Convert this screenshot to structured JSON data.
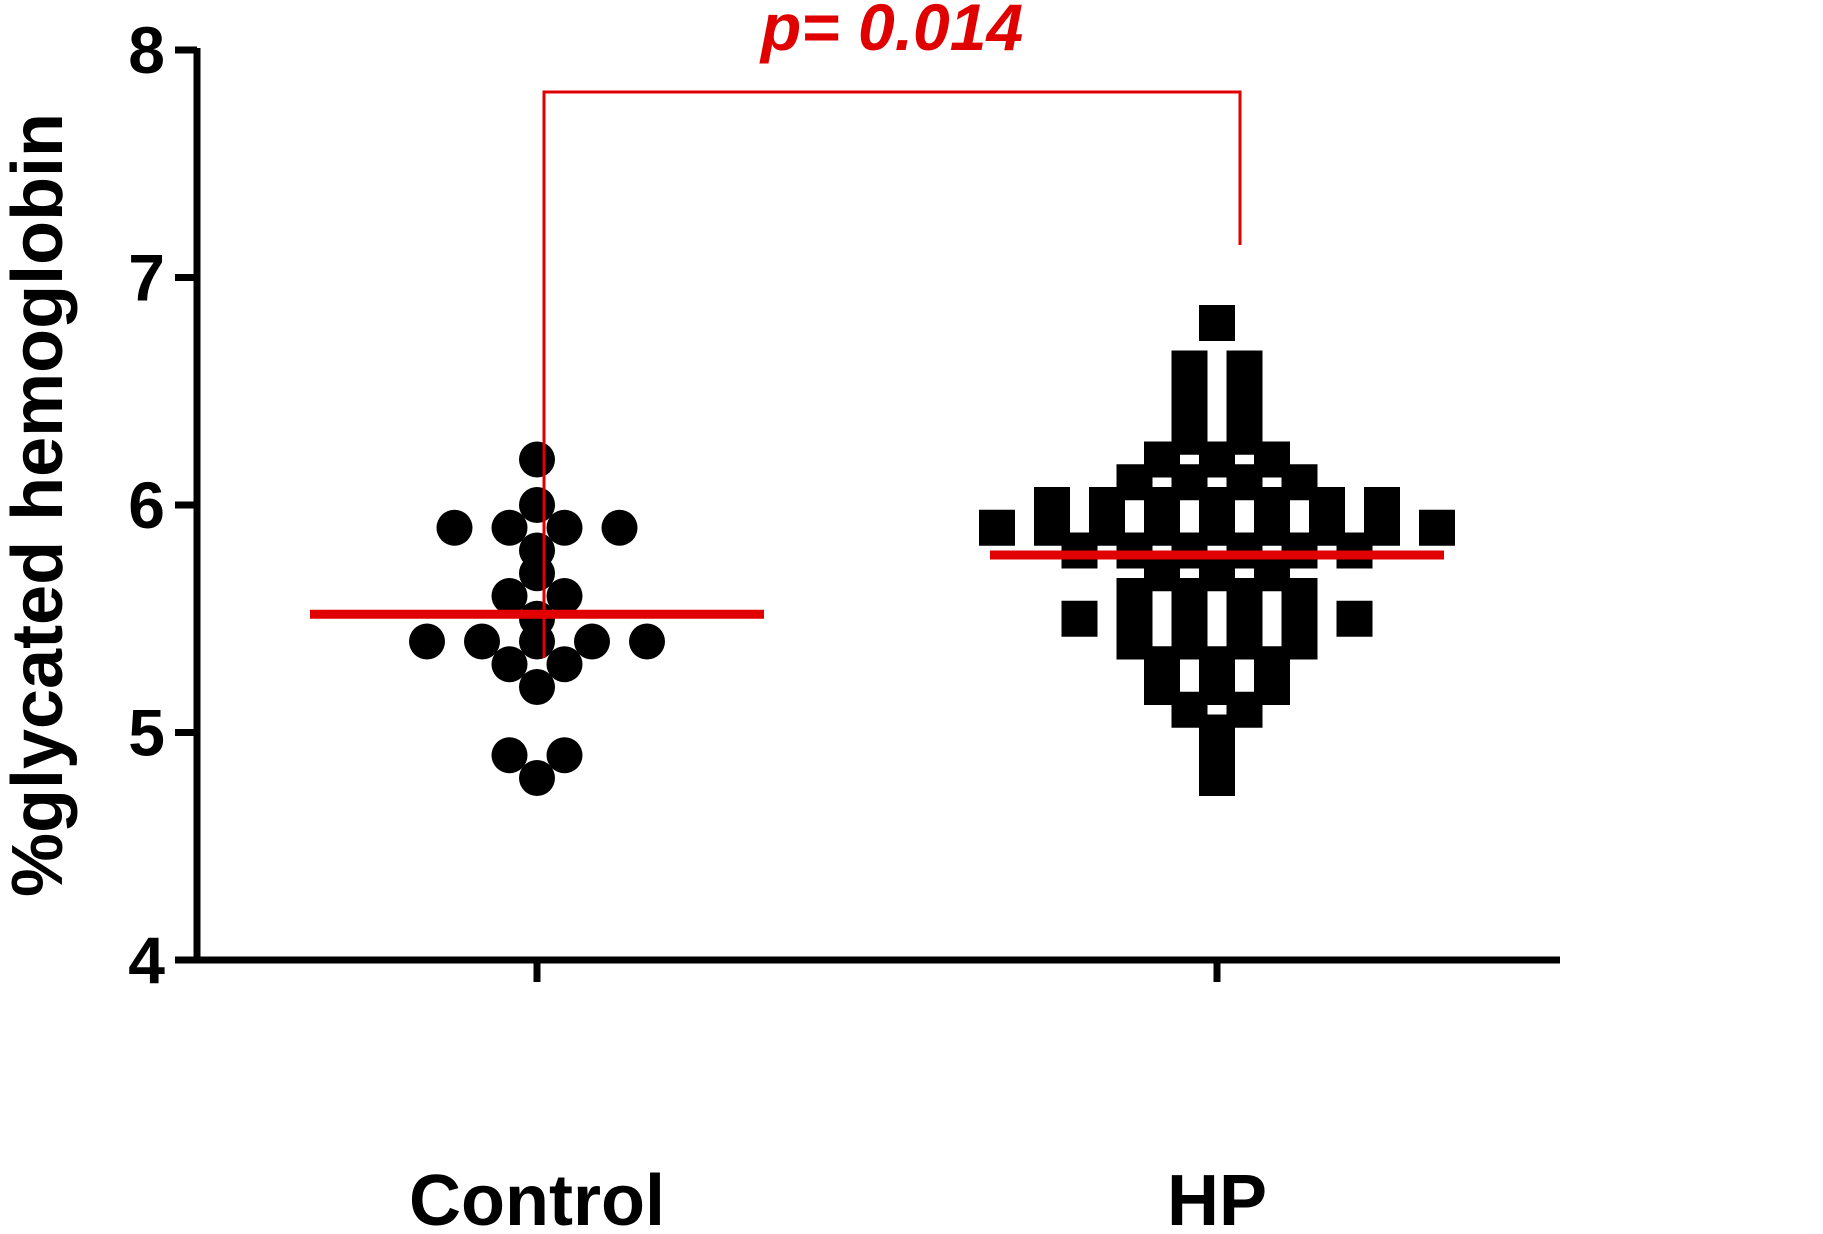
{
  "chart_data": {
    "type": "scatter",
    "ylabel": "%glycated hemoglobin",
    "ylim": [
      4,
      8
    ],
    "yticks": [
      "4",
      "5",
      "6",
      "7",
      "8"
    ],
    "categories": [
      "Control",
      "HP"
    ],
    "series": [
      {
        "category": "Control",
        "marker": "circle",
        "mean": 5.52,
        "values": [
          6.2,
          6.0,
          5.9,
          5.9,
          5.9,
          5.9,
          5.8,
          5.7,
          5.6,
          5.6,
          5.5,
          5.4,
          5.4,
          5.4,
          5.4,
          5.4,
          5.3,
          5.3,
          5.2,
          4.9,
          4.9,
          4.8
        ]
      },
      {
        "category": "HP",
        "marker": "square",
        "mean": 5.78,
        "values": [
          6.8,
          6.6,
          6.6,
          6.5,
          6.5,
          6.4,
          6.4,
          6.3,
          6.3,
          6.2,
          6.2,
          6.2,
          6.1,
          6.1,
          6.1,
          6.1,
          6.0,
          6.0,
          6.0,
          6.0,
          6.0,
          6.0,
          6.0,
          5.9,
          5.9,
          5.9,
          5.9,
          5.9,
          5.9,
          5.9,
          5.9,
          5.9,
          5.8,
          5.8,
          5.8,
          5.8,
          5.8,
          5.8,
          5.7,
          5.7,
          5.7,
          5.6,
          5.6,
          5.6,
          5.6,
          5.5,
          5.5,
          5.5,
          5.5,
          5.5,
          5.5,
          5.4,
          5.4,
          5.4,
          5.4,
          5.3,
          5.3,
          5.3,
          5.2,
          5.2,
          5.2,
          5.1,
          5.1,
          5.0,
          4.9,
          4.8
        ]
      }
    ],
    "annotation": {
      "text": "p= 0.014",
      "color": "#e00000"
    },
    "mean_line_color": "#e00000",
    "marker_color": "#000000"
  }
}
